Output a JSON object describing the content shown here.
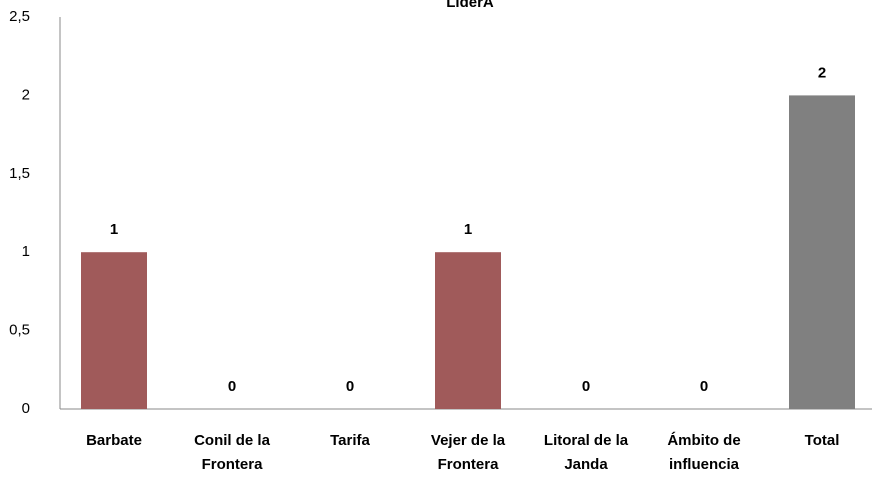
{
  "chart_data": {
    "type": "bar",
    "title": "LiderA",
    "categories": [
      "Barbate",
      "Conil de la Frontera",
      "Tarifa",
      "Vejer de la Frontera",
      "Litoral de la Janda",
      "Ámbito de influencia",
      "Total"
    ],
    "values": [
      1,
      0,
      0,
      1,
      0,
      0,
      2
    ],
    "colors": [
      "#a05a5a",
      "#a05a5a",
      "#a05a5a",
      "#a05a5a",
      "#a05a5a",
      "#a05a5a",
      "#808080"
    ],
    "ylim": [
      0,
      2.5
    ],
    "yticks": [
      0,
      {
        "value": 0.5,
        "label": "0,5"
      },
      1,
      {
        "value": 1.5,
        "label": "1,5"
      },
      2,
      {
        "value": 2.5,
        "label": "2,5"
      }
    ],
    "grid": false
  }
}
